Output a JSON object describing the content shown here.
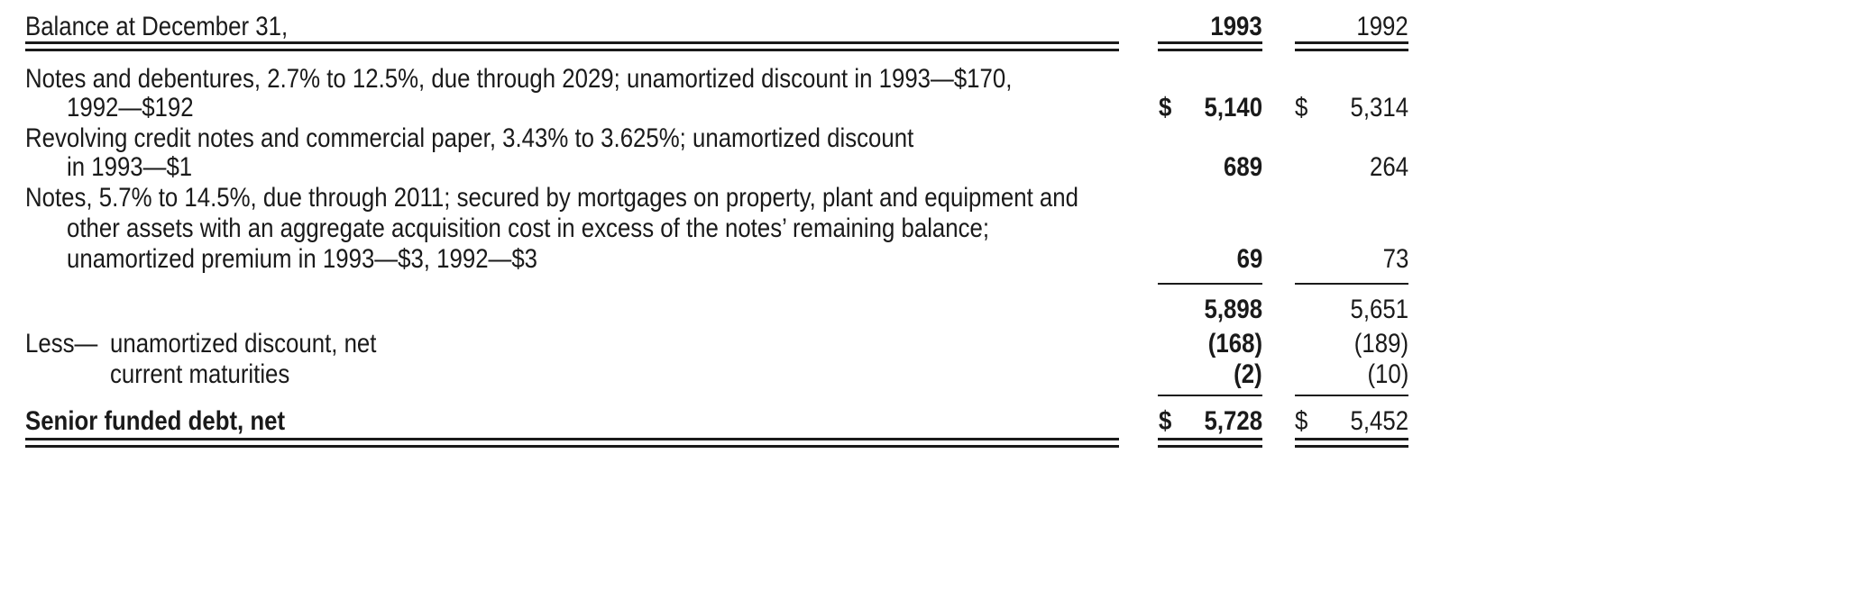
{
  "header": {
    "label": "Balance at December 31,",
    "col1993": "1993",
    "col1992": "1992"
  },
  "rows": [
    {
      "lines": [
        "Notes and debentures, 2.7% to 12.5%, due through 2029; unamortized discount in 1993—$170,",
        "1992—$192"
      ],
      "cur1993": "$",
      "val1993": "5,140",
      "cur1992": "$",
      "val1992": "5,314"
    },
    {
      "lines": [
        "Revolving credit notes and commercial paper, 3.43% to 3.625%; unamortized discount",
        "in 1993—$1"
      ],
      "val1993": "689",
      "val1992": "264"
    },
    {
      "lines": [
        "Notes, 5.7% to 14.5%, due through 2011; secured by mortgages on property, plant and equipment and",
        "other assets with an aggregate acquisition cost in excess of the notes’ remaining balance;",
        "unamortized premium in 1993—$3, 1992—$3"
      ],
      "val1993": "69",
      "val1992": "73"
    },
    {
      "val1993": "5,898",
      "val1992": "5,651"
    },
    {
      "prefix": "Less—",
      "label": "unamortized discount, net",
      "val1993": "(168)",
      "val1992": "(189)"
    },
    {
      "label": "current maturities",
      "val1993": "(2)",
      "val1992": "(10)"
    },
    {
      "label": "Senior funded debt, net",
      "cur1993": "$",
      "val1993": "5,728",
      "cur1992": "$",
      "val1992": "5,452"
    }
  ]
}
